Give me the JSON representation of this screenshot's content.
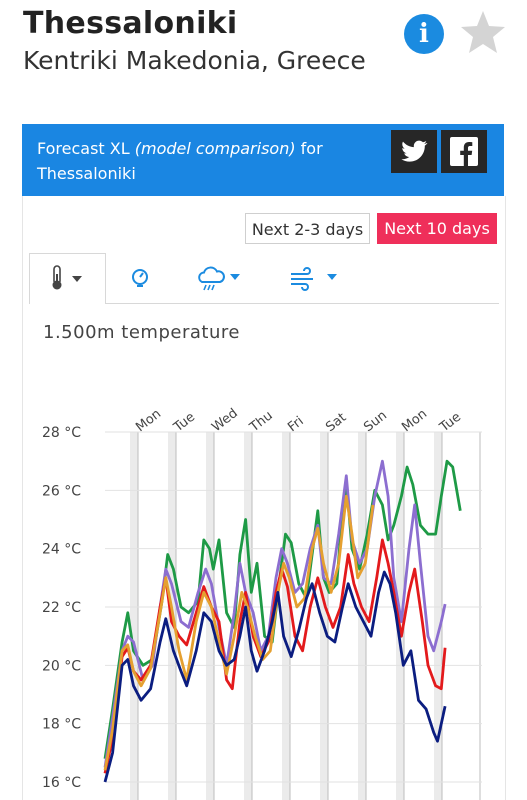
{
  "location": {
    "city": "Thessaloniki",
    "region": "Kentriki Makedonia, Greece",
    "info_icon": "info-icon",
    "star_icon": "star-icon"
  },
  "banner": {
    "prefix": "Forecast XL",
    "model": "(model comparison)",
    "for": "for",
    "city": "Thessaloniki",
    "twitter_icon": "twitter-icon",
    "facebook_icon": "facebook-icon",
    "color": "#1a86e2"
  },
  "range_buttons": {
    "short": "Next 2-3 days",
    "long": "Next 10 days",
    "active_color": "#ef2f5a"
  },
  "tabs": [
    {
      "icon": "thermometer-icon",
      "dropdown": true,
      "active": true
    },
    {
      "icon": "sun-gauge-icon",
      "dropdown": false,
      "active": false
    },
    {
      "icon": "rain-cloud-icon",
      "dropdown": true,
      "active": false
    },
    {
      "icon": "wind-icon",
      "dropdown": true,
      "active": false
    }
  ],
  "chart_data": {
    "type": "line",
    "title": "1.500m temperature",
    "y_unit": "°C",
    "y_ticks": [
      "28 °C",
      "26 °C",
      "24 °C",
      "22 °C",
      "20 °C",
      "18 °C",
      "16 °C"
    ],
    "ylim": [
      16,
      28
    ],
    "x_range": [
      0,
      9.4
    ],
    "day_labels": [
      "Mon",
      "Tue",
      "Wed",
      "Thu",
      "Fri",
      "Sat",
      "Sun",
      "Mon",
      "Tue"
    ],
    "grid": true,
    "series": [
      {
        "color": "#1e9a46",
        "values": [
          [
            0.0,
            16.8
          ],
          [
            0.2,
            18.5
          ],
          [
            0.45,
            20.8
          ],
          [
            0.6,
            21.8
          ],
          [
            0.75,
            20.5
          ],
          [
            1.0,
            20.0
          ],
          [
            1.25,
            20.2
          ],
          [
            1.5,
            22.2
          ],
          [
            1.65,
            23.8
          ],
          [
            1.8,
            23.3
          ],
          [
            2.0,
            22.0
          ],
          [
            2.2,
            21.8
          ],
          [
            2.45,
            22.2
          ],
          [
            2.6,
            24.3
          ],
          [
            2.75,
            24.0
          ],
          [
            2.85,
            23.3
          ],
          [
            3.0,
            24.3
          ],
          [
            3.2,
            21.8
          ],
          [
            3.4,
            21.3
          ],
          [
            3.55,
            23.8
          ],
          [
            3.7,
            25.0
          ],
          [
            3.85,
            22.5
          ],
          [
            4.0,
            23.5
          ],
          [
            4.2,
            21.0
          ],
          [
            4.4,
            20.8
          ],
          [
            4.6,
            23.0
          ],
          [
            4.75,
            24.5
          ],
          [
            4.9,
            24.2
          ],
          [
            5.1,
            22.8
          ],
          [
            5.3,
            22.3
          ],
          [
            5.5,
            24.3
          ],
          [
            5.6,
            25.3
          ],
          [
            5.75,
            23.0
          ],
          [
            5.9,
            22.5
          ],
          [
            6.1,
            22.8
          ],
          [
            6.25,
            25.3
          ],
          [
            6.35,
            26.3
          ],
          [
            6.5,
            24.0
          ],
          [
            6.7,
            23.3
          ],
          [
            6.9,
            24.5
          ],
          [
            7.1,
            26.0
          ],
          [
            7.3,
            25.5
          ],
          [
            7.45,
            24.3
          ],
          [
            7.6,
            24.8
          ],
          [
            7.8,
            25.8
          ],
          [
            7.95,
            26.8
          ],
          [
            8.1,
            26.2
          ],
          [
            8.3,
            24.8
          ],
          [
            8.5,
            24.5
          ],
          [
            8.7,
            24.5
          ],
          [
            8.85,
            25.8
          ],
          [
            9.0,
            27.0
          ],
          [
            9.15,
            26.8
          ],
          [
            9.35,
            25.3
          ]
        ]
      },
      {
        "color": "#8c6ed0",
        "values": [
          [
            0.0,
            16.5
          ],
          [
            0.2,
            18.2
          ],
          [
            0.45,
            20.5
          ],
          [
            0.6,
            21.0
          ],
          [
            0.75,
            20.8
          ],
          [
            1.0,
            19.5
          ],
          [
            1.25,
            20.0
          ],
          [
            1.45,
            22.0
          ],
          [
            1.6,
            23.3
          ],
          [
            1.75,
            22.8
          ],
          [
            2.0,
            21.5
          ],
          [
            2.2,
            21.3
          ],
          [
            2.45,
            22.5
          ],
          [
            2.65,
            23.3
          ],
          [
            2.8,
            22.8
          ],
          [
            3.0,
            21.3
          ],
          [
            3.2,
            20.0
          ],
          [
            3.4,
            21.8
          ],
          [
            3.55,
            23.5
          ],
          [
            3.7,
            22.5
          ],
          [
            3.9,
            21.8
          ],
          [
            4.1,
            20.5
          ],
          [
            4.3,
            21.0
          ],
          [
            4.5,
            23.0
          ],
          [
            4.65,
            24.0
          ],
          [
            4.8,
            23.5
          ],
          [
            5.0,
            22.5
          ],
          [
            5.2,
            22.8
          ],
          [
            5.4,
            24.0
          ],
          [
            5.6,
            24.8
          ],
          [
            5.75,
            23.0
          ],
          [
            5.95,
            22.8
          ],
          [
            6.15,
            24.5
          ],
          [
            6.35,
            26.5
          ],
          [
            6.5,
            24.3
          ],
          [
            6.7,
            23.5
          ],
          [
            6.9,
            24.0
          ],
          [
            7.1,
            25.8
          ],
          [
            7.3,
            27.0
          ],
          [
            7.45,
            25.8
          ],
          [
            7.6,
            23.0
          ],
          [
            7.8,
            21.5
          ],
          [
            8.0,
            24.0
          ],
          [
            8.15,
            25.5
          ],
          [
            8.3,
            23.5
          ],
          [
            8.5,
            21.0
          ],
          [
            8.65,
            20.5
          ],
          [
            8.85,
            21.5
          ],
          [
            8.95,
            22.1
          ]
        ]
      },
      {
        "color": "#e31a1c",
        "values": [
          [
            0.0,
            16.3
          ],
          [
            0.2,
            17.5
          ],
          [
            0.45,
            20.3
          ],
          [
            0.6,
            20.6
          ],
          [
            0.75,
            19.8
          ],
          [
            0.95,
            19.5
          ],
          [
            1.2,
            20.0
          ],
          [
            1.45,
            22.0
          ],
          [
            1.6,
            23.0
          ],
          [
            1.75,
            21.5
          ],
          [
            1.95,
            21.0
          ],
          [
            2.15,
            20.7
          ],
          [
            2.4,
            21.8
          ],
          [
            2.6,
            22.7
          ],
          [
            2.8,
            22.0
          ],
          [
            3.0,
            21.5
          ],
          [
            3.2,
            19.5
          ],
          [
            3.35,
            19.2
          ],
          [
            3.55,
            21.5
          ],
          [
            3.7,
            22.5
          ],
          [
            3.9,
            21.0
          ],
          [
            4.1,
            20.3
          ],
          [
            4.3,
            20.8
          ],
          [
            4.5,
            22.5
          ],
          [
            4.65,
            23.3
          ],
          [
            4.8,
            22.7
          ],
          [
            5.0,
            21.0
          ],
          [
            5.2,
            20.5
          ],
          [
            5.4,
            22.0
          ],
          [
            5.6,
            23.0
          ],
          [
            5.8,
            22.0
          ],
          [
            6.0,
            21.3
          ],
          [
            6.2,
            22.0
          ],
          [
            6.4,
            23.8
          ],
          [
            6.55,
            22.8
          ],
          [
            6.75,
            22.0
          ],
          [
            6.95,
            21.5
          ],
          [
            7.15,
            23.0
          ],
          [
            7.3,
            24.3
          ],
          [
            7.45,
            23.5
          ],
          [
            7.6,
            22.5
          ],
          [
            7.8,
            21.0
          ],
          [
            8.0,
            22.5
          ],
          [
            8.15,
            23.3
          ],
          [
            8.35,
            21.5
          ],
          [
            8.5,
            20.0
          ],
          [
            8.7,
            19.3
          ],
          [
            8.85,
            19.2
          ],
          [
            8.95,
            20.6
          ]
        ]
      },
      {
        "color": "#e5a030",
        "values": [
          [
            0.0,
            16.4
          ],
          [
            0.2,
            17.8
          ],
          [
            0.45,
            20.5
          ],
          [
            0.6,
            20.7
          ],
          [
            0.75,
            19.8
          ],
          [
            0.95,
            19.3
          ],
          [
            1.2,
            19.9
          ],
          [
            1.45,
            21.8
          ],
          [
            1.6,
            23.0
          ],
          [
            1.75,
            22.0
          ],
          [
            1.95,
            20.5
          ],
          [
            2.15,
            19.5
          ],
          [
            2.4,
            21.5
          ],
          [
            2.6,
            22.5
          ],
          [
            2.8,
            22.0
          ],
          [
            3.0,
            20.8
          ],
          [
            3.2,
            19.7
          ],
          [
            3.4,
            21.0
          ],
          [
            3.6,
            22.5
          ],
          [
            3.75,
            22.0
          ],
          [
            3.95,
            21.0
          ],
          [
            4.15,
            20.2
          ],
          [
            4.35,
            20.5
          ],
          [
            4.55,
            22.5
          ],
          [
            4.7,
            23.5
          ],
          [
            4.85,
            23.0
          ],
          [
            5.05,
            22.0
          ],
          [
            5.25,
            22.3
          ],
          [
            5.45,
            24.0
          ],
          [
            5.6,
            24.7
          ],
          [
            5.75,
            23.5
          ],
          [
            5.95,
            22.5
          ],
          [
            6.15,
            23.5
          ],
          [
            6.35,
            25.8
          ],
          [
            6.5,
            24.5
          ],
          [
            6.65,
            23.0
          ],
          [
            6.85,
            23.5
          ],
          [
            7.05,
            25.5
          ]
        ]
      },
      {
        "color": "#0b1d80",
        "values": [
          [
            0.0,
            16.0
          ],
          [
            0.2,
            17.0
          ],
          [
            0.45,
            20.0
          ],
          [
            0.6,
            20.2
          ],
          [
            0.75,
            19.3
          ],
          [
            0.95,
            18.8
          ],
          [
            1.2,
            19.2
          ],
          [
            1.45,
            20.8
          ],
          [
            1.6,
            21.6
          ],
          [
            1.8,
            20.5
          ],
          [
            2.0,
            19.8
          ],
          [
            2.15,
            19.3
          ],
          [
            2.4,
            20.5
          ],
          [
            2.6,
            21.8
          ],
          [
            2.8,
            21.5
          ],
          [
            3.0,
            20.5
          ],
          [
            3.2,
            20.0
          ],
          [
            3.4,
            20.2
          ],
          [
            3.55,
            21.0
          ],
          [
            3.7,
            22.0
          ],
          [
            3.85,
            20.5
          ],
          [
            4.0,
            19.8
          ],
          [
            4.2,
            20.5
          ],
          [
            4.4,
            21.5
          ],
          [
            4.55,
            22.5
          ],
          [
            4.7,
            21.0
          ],
          [
            4.9,
            20.3
          ],
          [
            5.1,
            21.2
          ],
          [
            5.3,
            22.3
          ],
          [
            5.45,
            22.8
          ],
          [
            5.65,
            21.8
          ],
          [
            5.85,
            21.0
          ],
          [
            6.05,
            20.8
          ],
          [
            6.25,
            22.0
          ],
          [
            6.4,
            22.8
          ],
          [
            6.6,
            22.0
          ],
          [
            6.8,
            21.5
          ],
          [
            7.0,
            21.0
          ],
          [
            7.2,
            22.5
          ],
          [
            7.35,
            23.2
          ],
          [
            7.5,
            22.8
          ],
          [
            7.65,
            21.8
          ],
          [
            7.85,
            20.0
          ],
          [
            8.05,
            20.5
          ],
          [
            8.25,
            18.8
          ],
          [
            8.45,
            18.5
          ],
          [
            8.65,
            17.7
          ],
          [
            8.75,
            17.4
          ],
          [
            8.95,
            18.6
          ]
        ]
      }
    ]
  }
}
